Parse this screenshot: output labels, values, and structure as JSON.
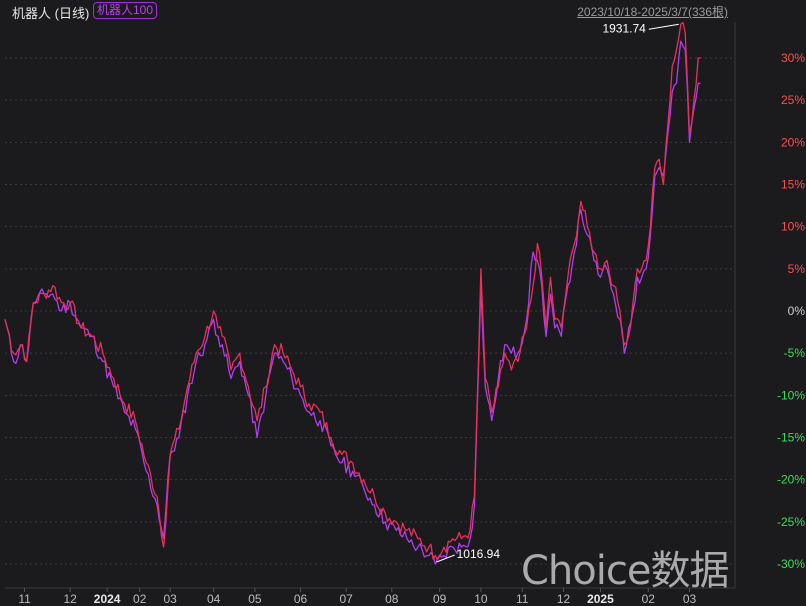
{
  "header": {
    "title": "机器人 (日线)",
    "badge": "机器人100",
    "date_range": "2023/10/18-2025/3/7(336根)"
  },
  "watermark": "Choice数据",
  "colors": {
    "background": "#1b1b1d",
    "series_main": "#e8305a",
    "series_compare": "#b23cf0",
    "positive": "#ff4d4d",
    "negative": "#3ddc5a"
  },
  "chart_data": {
    "type": "line",
    "ylim": [
      -31,
      35
    ],
    "y_ticks": [
      {
        "value": 30,
        "label": "30%"
      },
      {
        "value": 25,
        "label": "25%"
      },
      {
        "value": 20,
        "label": "20%"
      },
      {
        "value": 15,
        "label": "15%"
      },
      {
        "value": 10,
        "label": "10%"
      },
      {
        "value": 5,
        "label": "5%"
      },
      {
        "value": 0,
        "label": "0%"
      },
      {
        "value": -5,
        "label": "-5%"
      },
      {
        "value": -10,
        "label": "-10%"
      },
      {
        "value": -15,
        "label": "-15%"
      },
      {
        "value": -20,
        "label": "-20%"
      },
      {
        "value": -25,
        "label": "-25%"
      },
      {
        "value": -30,
        "label": "-30%"
      }
    ],
    "x_ticks": [
      "11",
      "12",
      "2024",
      "02",
      "03",
      "04",
      "05",
      "06",
      "07",
      "08",
      "09",
      "10",
      "11",
      "12",
      "2025",
      "02",
      "03"
    ],
    "x_tick_index": [
      9,
      30,
      47,
      62,
      76,
      96,
      115,
      136,
      157,
      178,
      200,
      219,
      238,
      257,
      274,
      296,
      315
    ],
    "x_count": 336,
    "annotations": [
      {
        "label": "1931.74",
        "x_index": 311,
        "y": 34
      },
      {
        "label": "1016.94",
        "x_index": 200,
        "y": -30
      }
    ],
    "series": [
      {
        "name": "机器人",
        "color": "#e8305a",
        "keypoints": [
          [
            0,
            -1
          ],
          [
            4,
            -5
          ],
          [
            8,
            -4
          ],
          [
            10,
            -6
          ],
          [
            13,
            1
          ],
          [
            18,
            2
          ],
          [
            22,
            3
          ],
          [
            26,
            1
          ],
          [
            30,
            1
          ],
          [
            35,
            -2
          ],
          [
            40,
            -3
          ],
          [
            45,
            -5
          ],
          [
            50,
            -8
          ],
          [
            55,
            -11
          ],
          [
            60,
            -13
          ],
          [
            65,
            -18
          ],
          [
            70,
            -22
          ],
          [
            73,
            -28
          ],
          [
            76,
            -17
          ],
          [
            80,
            -14
          ],
          [
            84,
            -9
          ],
          [
            88,
            -5
          ],
          [
            92,
            -3
          ],
          [
            96,
            0
          ],
          [
            98,
            -2
          ],
          [
            100,
            -3
          ],
          [
            104,
            -7
          ],
          [
            108,
            -5
          ],
          [
            112,
            -9
          ],
          [
            116,
            -13
          ],
          [
            120,
            -9
          ],
          [
            124,
            -4
          ],
          [
            128,
            -5
          ],
          [
            132,
            -7
          ],
          [
            136,
            -9
          ],
          [
            140,
            -11
          ],
          [
            145,
            -12
          ],
          [
            150,
            -15
          ],
          [
            155,
            -17
          ],
          [
            160,
            -18
          ],
          [
            165,
            -20
          ],
          [
            170,
            -22
          ],
          [
            175,
            -24
          ],
          [
            180,
            -25
          ],
          [
            185,
            -26
          ],
          [
            190,
            -27
          ],
          [
            195,
            -28
          ],
          [
            198,
            -29
          ],
          [
            202,
            -28
          ],
          [
            206,
            -27
          ],
          [
            210,
            -27
          ],
          [
            214,
            -26
          ],
          [
            216,
            -22
          ],
          [
            218,
            -5
          ],
          [
            219,
            5
          ],
          [
            221,
            -8
          ],
          [
            224,
            -12
          ],
          [
            227,
            -9
          ],
          [
            230,
            -5
          ],
          [
            233,
            -7
          ],
          [
            236,
            -6
          ],
          [
            240,
            -2
          ],
          [
            243,
            3
          ],
          [
            245,
            8
          ],
          [
            247,
            4
          ],
          [
            249,
            -2
          ],
          [
            251,
            4
          ],
          [
            253,
            -1
          ],
          [
            256,
            -2
          ],
          [
            259,
            4
          ],
          [
            262,
            8
          ],
          [
            265,
            13
          ],
          [
            268,
            10
          ],
          [
            271,
            7
          ],
          [
            274,
            5
          ],
          [
            277,
            6
          ],
          [
            280,
            3
          ],
          [
            283,
            0
          ],
          [
            285,
            -4
          ],
          [
            287,
            -3
          ],
          [
            289,
            1
          ],
          [
            291,
            5
          ],
          [
            293,
            5
          ],
          [
            295,
            6
          ],
          [
            297,
            10
          ],
          [
            299,
            17
          ],
          [
            301,
            18
          ],
          [
            303,
            15
          ],
          [
            305,
            22
          ],
          [
            307,
            29
          ],
          [
            309,
            31
          ],
          [
            311,
            34
          ],
          [
            313,
            33
          ],
          [
            315,
            21
          ],
          [
            317,
            25
          ],
          [
            319,
            30
          ],
          [
            320,
            30
          ]
        ]
      },
      {
        "name": "机器人100",
        "color": "#b23cf0",
        "keypoints": [
          [
            0,
            -1
          ],
          [
            4,
            -6
          ],
          [
            8,
            -4
          ],
          [
            10,
            -6
          ],
          [
            13,
            1
          ],
          [
            18,
            2
          ],
          [
            22,
            2
          ],
          [
            26,
            0
          ],
          [
            30,
            1
          ],
          [
            35,
            -2
          ],
          [
            40,
            -3
          ],
          [
            45,
            -6
          ],
          [
            50,
            -9
          ],
          [
            55,
            -12
          ],
          [
            60,
            -14
          ],
          [
            65,
            -19
          ],
          [
            70,
            -23
          ],
          [
            73,
            -27
          ],
          [
            76,
            -17
          ],
          [
            80,
            -15
          ],
          [
            84,
            -10
          ],
          [
            88,
            -6
          ],
          [
            92,
            -4
          ],
          [
            96,
            -1
          ],
          [
            98,
            -3
          ],
          [
            100,
            -4
          ],
          [
            104,
            -8
          ],
          [
            108,
            -6
          ],
          [
            112,
            -10
          ],
          [
            116,
            -15
          ],
          [
            120,
            -10
          ],
          [
            124,
            -5
          ],
          [
            128,
            -6
          ],
          [
            132,
            -8
          ],
          [
            136,
            -10
          ],
          [
            140,
            -12
          ],
          [
            145,
            -13
          ],
          [
            150,
            -16
          ],
          [
            155,
            -18
          ],
          [
            160,
            -19
          ],
          [
            165,
            -21
          ],
          [
            170,
            -23
          ],
          [
            175,
            -25
          ],
          [
            180,
            -26
          ],
          [
            185,
            -27
          ],
          [
            190,
            -28
          ],
          [
            195,
            -29
          ],
          [
            198,
            -30
          ],
          [
            202,
            -29
          ],
          [
            206,
            -28
          ],
          [
            210,
            -28
          ],
          [
            214,
            -27
          ],
          [
            216,
            -23
          ],
          [
            218,
            -6
          ],
          [
            219,
            3
          ],
          [
            221,
            -9
          ],
          [
            224,
            -13
          ],
          [
            227,
            -8
          ],
          [
            230,
            -4
          ],
          [
            233,
            -5
          ],
          [
            236,
            -5
          ],
          [
            240,
            -1
          ],
          [
            243,
            7
          ],
          [
            245,
            6
          ],
          [
            247,
            3
          ],
          [
            249,
            -3
          ],
          [
            251,
            2
          ],
          [
            253,
            -2
          ],
          [
            256,
            -3
          ],
          [
            259,
            3
          ],
          [
            262,
            7
          ],
          [
            265,
            12
          ],
          [
            268,
            9
          ],
          [
            271,
            6
          ],
          [
            274,
            4
          ],
          [
            277,
            5
          ],
          [
            280,
            2
          ],
          [
            283,
            -1
          ],
          [
            285,
            -5
          ],
          [
            287,
            -2
          ],
          [
            289,
            0
          ],
          [
            291,
            4
          ],
          [
            293,
            4
          ],
          [
            295,
            5
          ],
          [
            297,
            9
          ],
          [
            299,
            16
          ],
          [
            301,
            17
          ],
          [
            303,
            16
          ],
          [
            305,
            21
          ],
          [
            307,
            26
          ],
          [
            309,
            27
          ],
          [
            311,
            32
          ],
          [
            313,
            31
          ],
          [
            315,
            20
          ],
          [
            317,
            24
          ],
          [
            319,
            27
          ],
          [
            320,
            27
          ]
        ]
      }
    ]
  }
}
